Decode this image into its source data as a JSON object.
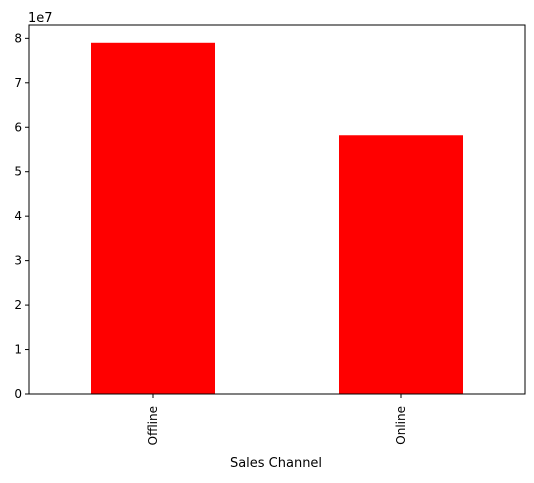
{
  "chart_data": {
    "type": "bar",
    "title": "",
    "xlabel": "Sales Channel",
    "ylabel": "",
    "y_offset_label": "1e7",
    "categories": [
      "Offline",
      "Online"
    ],
    "values": [
      79000000,
      58200000
    ],
    "ylim": [
      0,
      83000000
    ],
    "yticks": [
      {
        "value": 0,
        "label": "0"
      },
      {
        "value": 10000000,
        "label": "1"
      },
      {
        "value": 20000000,
        "label": "2"
      },
      {
        "value": 30000000,
        "label": "3"
      },
      {
        "value": 40000000,
        "label": "4"
      },
      {
        "value": 50000000,
        "label": "5"
      },
      {
        "value": 60000000,
        "label": "6"
      },
      {
        "value": 70000000,
        "label": "7"
      },
      {
        "value": 80000000,
        "label": "8"
      }
    ],
    "grid": false,
    "legend": "none",
    "bar_color": "#ff0000"
  }
}
